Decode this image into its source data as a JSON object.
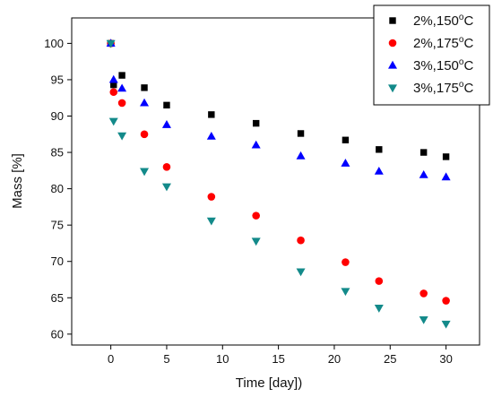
{
  "chart_data": {
    "type": "scatter",
    "xlabel": "Time [day])",
    "ylabel": "Mass [%]",
    "xlim": [
      -3.5,
      33
    ],
    "ylim": [
      58.5,
      103.5
    ],
    "xticks": [
      0,
      5,
      10,
      15,
      20,
      25,
      30
    ],
    "yticks": [
      60,
      65,
      70,
      75,
      80,
      85,
      90,
      95,
      100
    ],
    "grid": false,
    "legend_position": "top-right",
    "series": [
      {
        "name_prefix": "2%,150",
        "name_superscript": "o",
        "name_suffix": "C",
        "marker": "square",
        "color": "#000000",
        "x": [
          0,
          0.25,
          1,
          3,
          5,
          9,
          13,
          17,
          21,
          24,
          28,
          30
        ],
        "y": [
          100,
          94.3,
          95.6,
          93.9,
          91.5,
          90.2,
          89.0,
          87.6,
          86.7,
          85.4,
          85.0,
          84.4
        ]
      },
      {
        "name_prefix": "2%,175",
        "name_superscript": "o",
        "name_suffix": "C",
        "marker": "circle",
        "color": "#ff0000",
        "x": [
          0,
          0.25,
          1,
          3,
          5,
          9,
          13,
          17,
          21,
          24,
          28,
          30
        ],
        "y": [
          100,
          93.3,
          91.8,
          87.5,
          83.0,
          78.9,
          76.3,
          72.9,
          69.9,
          67.3,
          65.6,
          64.6
        ]
      },
      {
        "name_prefix": "3%,150",
        "name_superscript": "o",
        "name_suffix": "C",
        "marker": "triangle-up",
        "color": "#0000ff",
        "x": [
          0,
          0.25,
          1,
          3,
          5,
          9,
          13,
          17,
          21,
          24,
          28,
          30
        ],
        "y": [
          100,
          95.0,
          93.8,
          91.8,
          88.8,
          87.2,
          86.0,
          84.5,
          83.5,
          82.4,
          81.9,
          81.6
        ]
      },
      {
        "name_prefix": "3%,175",
        "name_superscript": "o",
        "name_suffix": "C",
        "marker": "triangle-down",
        "color": "#138a8a",
        "x": [
          0,
          0.25,
          1,
          3,
          5,
          9,
          13,
          17,
          21,
          24,
          28,
          30
        ],
        "y": [
          100,
          89.3,
          87.3,
          82.4,
          80.3,
          75.6,
          72.8,
          68.6,
          65.9,
          63.6,
          62.0,
          61.4
        ]
      }
    ]
  }
}
